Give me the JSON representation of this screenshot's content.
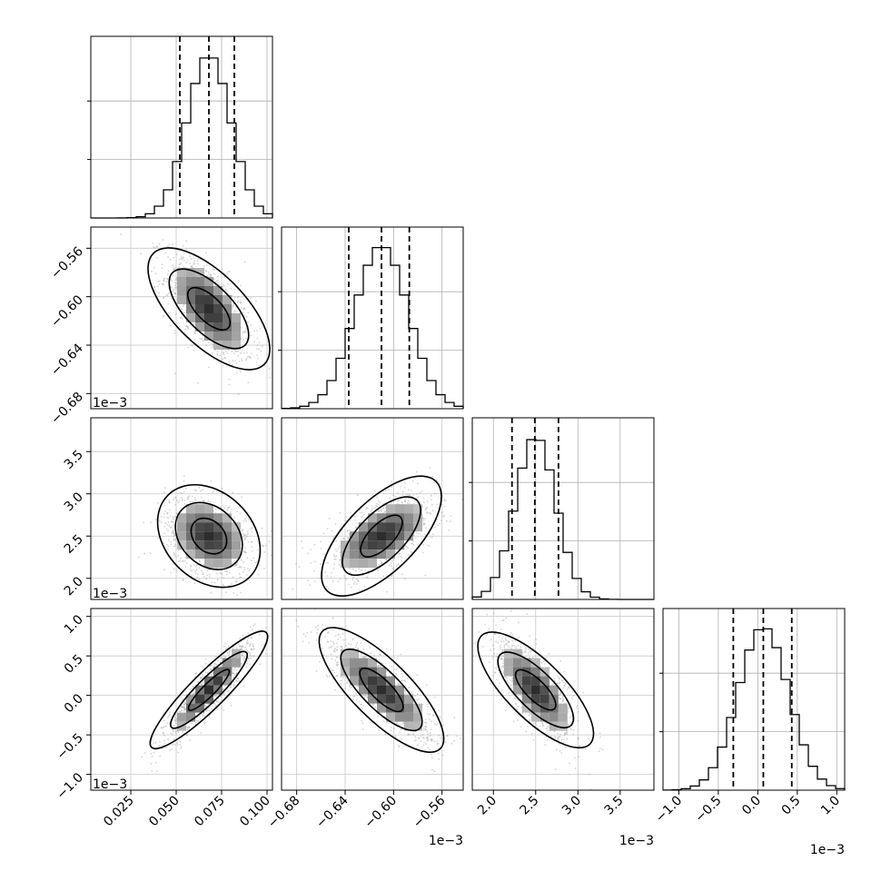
{
  "chart_data": {
    "type": "corner",
    "parameters": 4,
    "quantile_lines": true,
    "grid": true,
    "axes": [
      {
        "index": 0,
        "range": [
          0.003,
          0.103
        ],
        "ticks": [
          0.025,
          0.05,
          0.075,
          0.1
        ],
        "tick_labels": [
          "0.025",
          "0.050",
          "0.075",
          "0.100"
        ],
        "offset_text": "",
        "mean": 0.068,
        "sd": 0.012,
        "quantiles": [
          0.052,
          0.068,
          0.082
        ]
      },
      {
        "index": 1,
        "range": [
          -0.6925,
          -0.5425
        ],
        "ticks": [
          -0.68,
          -0.64,
          -0.6,
          -0.56
        ],
        "tick_labels": [
          "−0.68",
          "−0.64",
          "−0.60",
          "−0.56"
        ],
        "offset_text": "1e−3",
        "mean": -0.61,
        "sd": 0.022,
        "quantiles": [
          -0.637,
          -0.61,
          -0.587
        ]
      },
      {
        "index": 2,
        "range": [
          1.75,
          3.9
        ],
        "ticks": [
          2.0,
          2.5,
          3.0,
          3.5
        ],
        "tick_labels": [
          "2.0",
          "2.5",
          "3.0",
          "3.5"
        ],
        "offset_text": "1e−3",
        "mean": 2.5,
        "sd": 0.24,
        "quantiles": [
          2.22,
          2.49,
          2.77
        ]
      },
      {
        "index": 3,
        "range": [
          -1.2,
          1.1
        ],
        "ticks": [
          -1.0,
          -0.5,
          0.0,
          0.5,
          1.0
        ],
        "tick_labels": [
          "−1.0",
          "−0.5",
          "0.0",
          "0.5",
          "1.0"
        ],
        "offset_text": "1e−3",
        "mean": 0.07,
        "sd": 0.32,
        "quantiles": [
          -0.31,
          0.07,
          0.43
        ]
      }
    ],
    "correlations": [
      {
        "pair": [
          0,
          1
        ],
        "rho": -0.6
      },
      {
        "pair": [
          0,
          2
        ],
        "rho": -0.3
      },
      {
        "pair": [
          0,
          3
        ],
        "rho": 0.9
      },
      {
        "pair": [
          1,
          2
        ],
        "rho": 0.55
      },
      {
        "pair": [
          1,
          3
        ],
        "rho": -0.8
      },
      {
        "pair": [
          2,
          3
        ],
        "rho": -0.7
      }
    ],
    "histogram_bins": 20,
    "scatter_color": "#9e9e9e",
    "contour_color": "#000000",
    "density_color": "#000000"
  }
}
